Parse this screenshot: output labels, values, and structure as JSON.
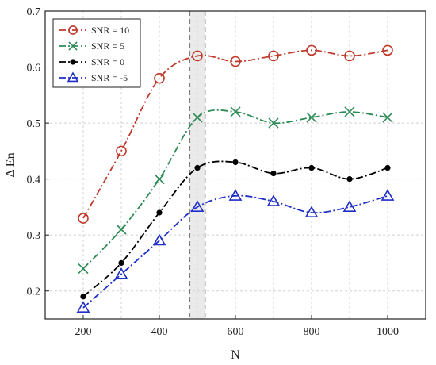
{
  "chart_data": {
    "type": "line",
    "title": "",
    "xlabel": "N",
    "ylabel": "Δ En",
    "xlim": [
      100,
      1100
    ],
    "ylim": [
      0.15,
      0.7
    ],
    "xticks": [
      "200",
      "400",
      "600",
      "800",
      "1000"
    ],
    "xtick_values": [
      200,
      400,
      600,
      800,
      1000
    ],
    "yticks": [
      "0.2",
      "0.3",
      "0.4",
      "0.5",
      "0.6",
      "0.7"
    ],
    "ytick_values": [
      0.2,
      0.3,
      0.4,
      0.5,
      0.6,
      0.7
    ],
    "grid": "dashed vertical and horizontal gridlines",
    "legend_position": "top-left",
    "highlight_band": {
      "x_range": [
        480,
        520
      ],
      "color": "#d9d9d9"
    },
    "x": [
      200,
      300,
      400,
      500,
      600,
      700,
      800,
      900,
      1000
    ],
    "series": [
      {
        "name": "SNR = 10",
        "color": "#c0392b",
        "marker": "circle-open",
        "values": [
          0.33,
          0.45,
          0.58,
          0.62,
          0.61,
          0.62,
          0.63,
          0.62,
          0.63
        ]
      },
      {
        "name": "SNR = 5",
        "color": "#2e8b57",
        "marker": "x",
        "values": [
          0.24,
          0.31,
          0.4,
          0.51,
          0.52,
          0.5,
          0.51,
          0.52,
          0.51
        ]
      },
      {
        "name": "SNR = 0",
        "color": "#000000",
        "marker": "dot",
        "values": [
          0.19,
          0.25,
          0.34,
          0.42,
          0.43,
          0.41,
          0.42,
          0.4,
          0.42
        ]
      },
      {
        "name": "SNR = -5",
        "color": "#1f2fc8",
        "marker": "triangle-open",
        "values": [
          0.17,
          0.23,
          0.29,
          0.35,
          0.37,
          0.36,
          0.34,
          0.35,
          0.37
        ]
      }
    ]
  }
}
